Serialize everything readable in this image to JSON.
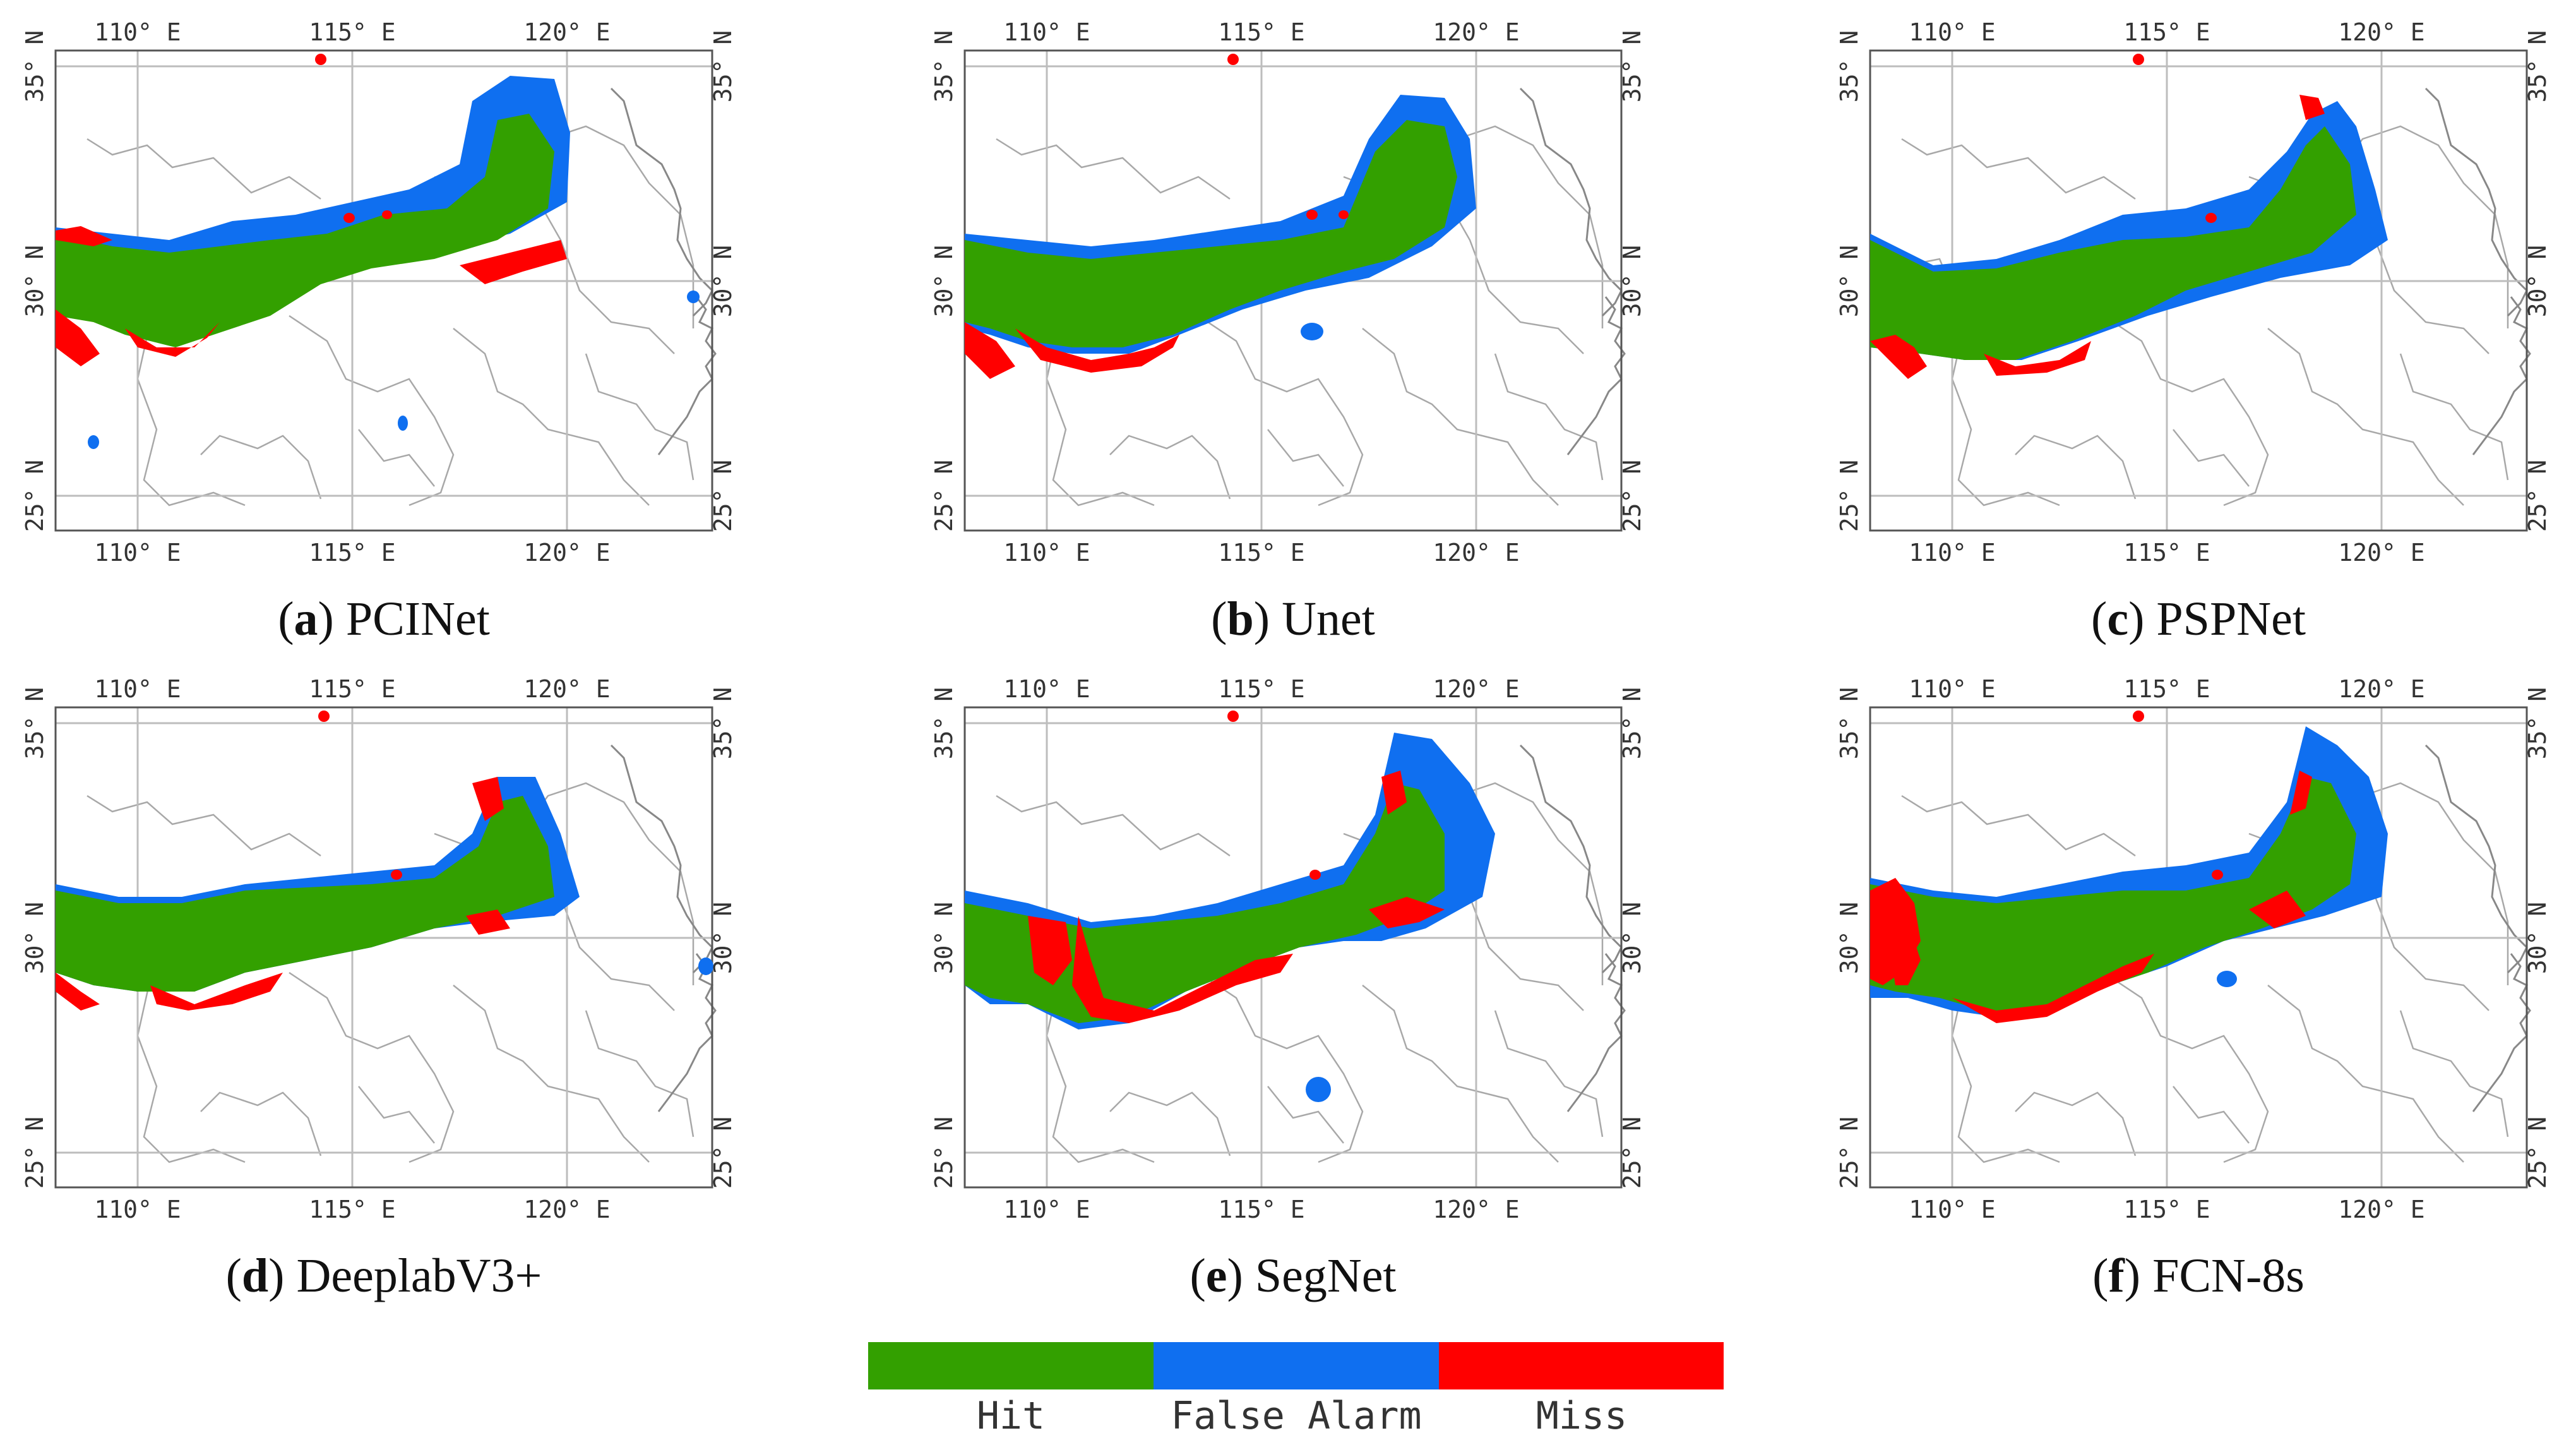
{
  "figure": {
    "panels": [
      {
        "id": "a",
        "letter": "a",
        "title": "PCINet"
      },
      {
        "id": "b",
        "letter": "b",
        "title": "Unet"
      },
      {
        "id": "c",
        "letter": "c",
        "title": "PSPNet"
      },
      {
        "id": "d",
        "letter": "d",
        "title": "DeeplabV3+"
      },
      {
        "id": "e",
        "letter": "e",
        "title": "SegNet"
      },
      {
        "id": "f",
        "letter": "f",
        "title": "FCN-8s"
      }
    ],
    "longitude_labels": [
      "110° E",
      "115° E",
      "120° E"
    ],
    "latitude_labels": [
      "25° N",
      "30° N",
      "35° N"
    ],
    "legend": [
      {
        "label": "Hit",
        "color": "#33a000"
      },
      {
        "label": "False Alarm",
        "color": "#0f6ff0"
      },
      {
        "label": "Miss",
        "color": "#ff0000"
      }
    ]
  }
}
